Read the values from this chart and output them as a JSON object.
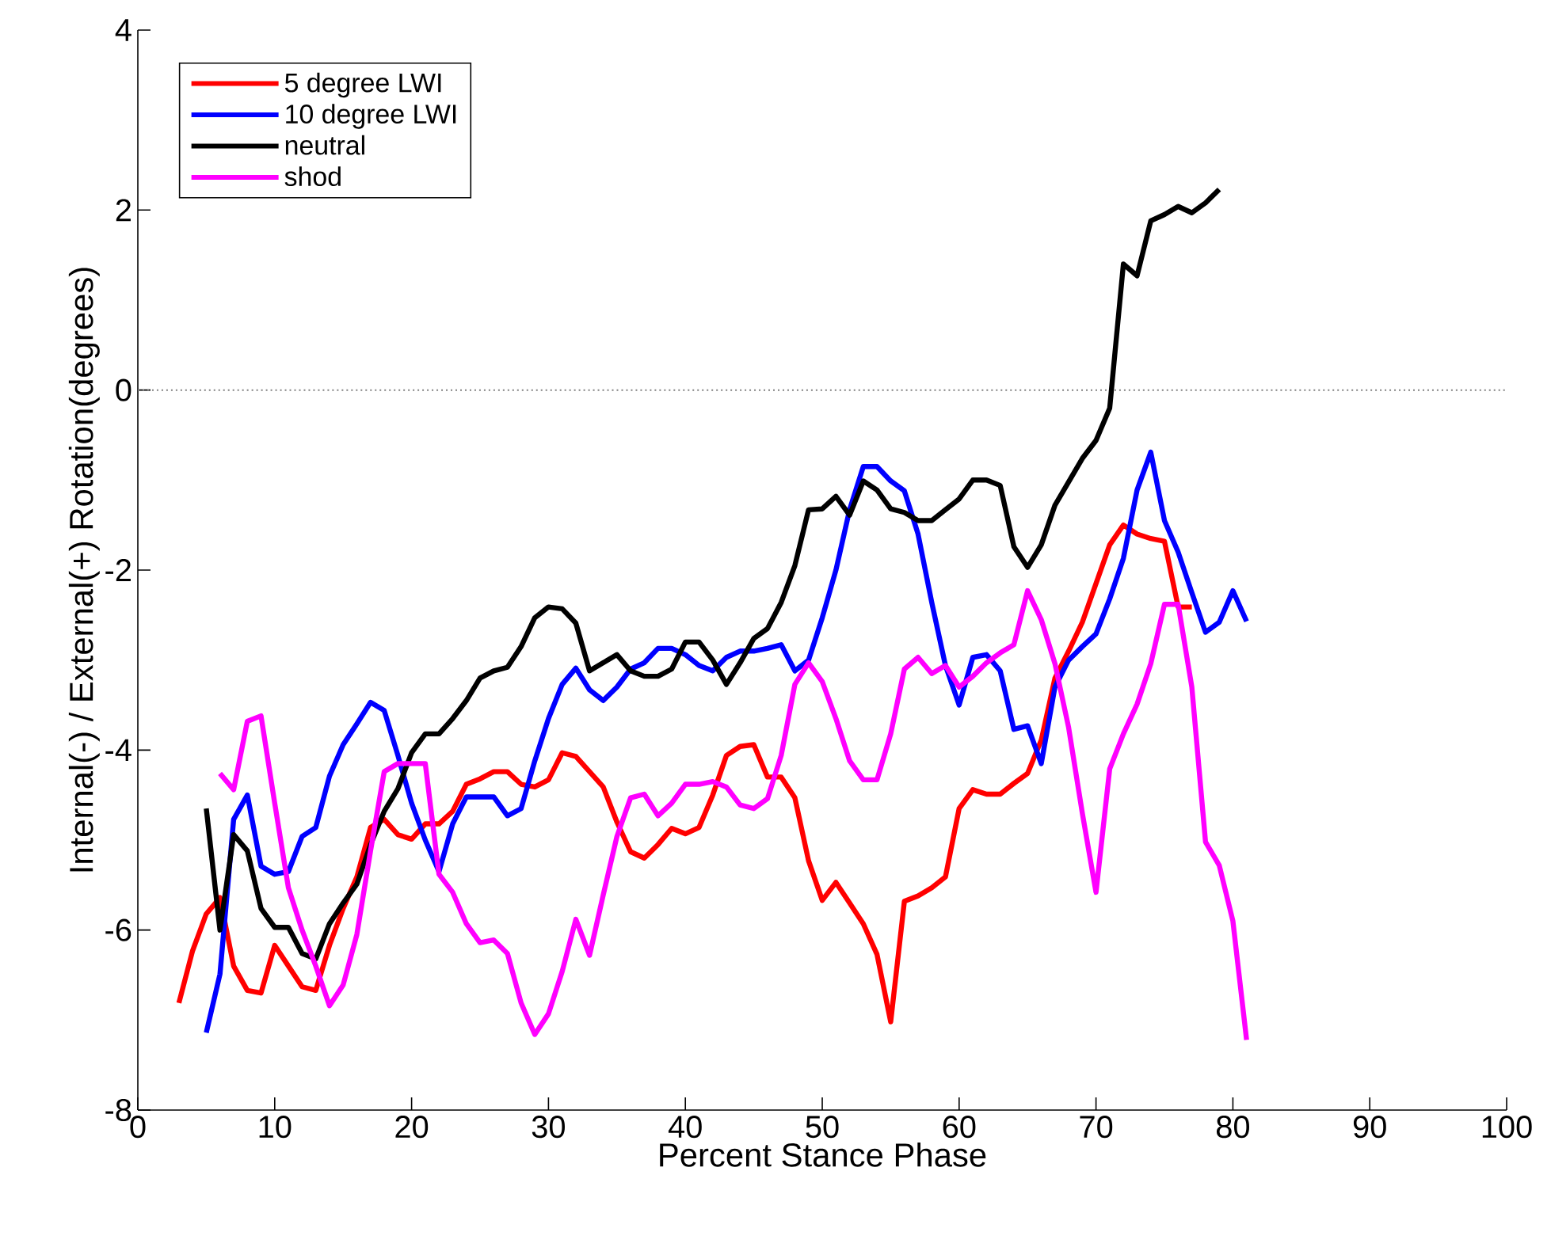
{
  "chart_data": {
    "type": "line",
    "xlabel": "Percent Stance Phase",
    "ylabel": "Internal(-) / External(+) Rotation(degrees)",
    "xlim": [
      0,
      100
    ],
    "ylim": [
      -8,
      4
    ],
    "xticks": [
      0,
      10,
      20,
      30,
      40,
      50,
      60,
      70,
      80,
      90,
      100
    ],
    "yticks": [
      -8,
      -6,
      -4,
      -2,
      0,
      2,
      4
    ],
    "legend": "top left",
    "line_style": "solid",
    "grid": false,
    "ref_lines": [
      {
        "axis": "y",
        "value": 0,
        "color": "#808080",
        "line_style": "dotted"
      }
    ],
    "series": [
      {
        "name": "5 degree LWI",
        "color": "#ff0000",
        "x": [
          3,
          4,
          5,
          6,
          7,
          8,
          9,
          10,
          11,
          12,
          13,
          14,
          15,
          16,
          17,
          18,
          19,
          20,
          21,
          22,
          23,
          24,
          25,
          26,
          27,
          28,
          29,
          30,
          31,
          32,
          33,
          34,
          35,
          36,
          37,
          38,
          39,
          40,
          41,
          42,
          43,
          44,
          45,
          46,
          47,
          48,
          49,
          50,
          51,
          52,
          53,
          54,
          55,
          56,
          57,
          58,
          59,
          60,
          61,
          62,
          63,
          64,
          65,
          66,
          67,
          68,
          69,
          70,
          71,
          72,
          73,
          74,
          75,
          76,
          77
        ],
        "values": [
          -6.81,
          -6.23,
          -5.82,
          -5.64,
          -6.4,
          -6.67,
          -6.7,
          -6.17,
          -6.4,
          -6.63,
          -6.67,
          -6.17,
          -5.76,
          -5.41,
          -4.86,
          -4.77,
          -4.94,
          -4.99,
          -4.82,
          -4.82,
          -4.68,
          -4.38,
          -4.32,
          -4.24,
          -4.24,
          -4.38,
          -4.41,
          -4.33,
          -4.03,
          -4.07,
          -4.24,
          -4.41,
          -4.8,
          -5.13,
          -5.2,
          -5.05,
          -4.87,
          -4.93,
          -4.86,
          -4.5,
          -4.06,
          -3.96,
          -3.94,
          -4.3,
          -4.3,
          -4.53,
          -5.23,
          -5.67,
          -5.47,
          -5.7,
          -5.93,
          -6.27,
          -7.02,
          -5.68,
          -5.62,
          -5.53,
          -5.41,
          -4.65,
          -4.44,
          -4.49,
          -4.49,
          -4.37,
          -4.26,
          -3.89,
          -3.2,
          -2.9,
          -2.58,
          -2.15,
          -1.72,
          -1.5,
          -1.6,
          -1.65,
          -1.68,
          -2.41,
          -2.41
        ]
      },
      {
        "name": "10 degree LWI",
        "color": "#0000ff",
        "x": [
          5,
          6,
          7,
          8,
          9,
          10,
          11,
          12,
          13,
          14,
          15,
          16,
          17,
          18,
          19,
          20,
          21,
          22,
          23,
          24,
          25,
          26,
          27,
          28,
          29,
          30,
          31,
          32,
          33,
          34,
          35,
          36,
          37,
          38,
          39,
          40,
          41,
          42,
          43,
          44,
          45,
          46,
          47,
          48,
          49,
          50,
          51,
          52,
          53,
          54,
          55,
          56,
          57,
          58,
          59,
          60,
          61,
          62,
          63,
          64,
          65,
          66,
          67,
          68,
          69,
          70,
          71,
          72,
          73,
          74,
          75,
          76,
          77,
          78,
          79,
          80,
          81
        ],
        "values": [
          -7.14,
          -6.49,
          -4.77,
          -4.5,
          -5.29,
          -5.38,
          -5.35,
          -4.96,
          -4.86,
          -4.29,
          -3.94,
          -3.71,
          -3.47,
          -3.56,
          -4.06,
          -4.59,
          -5.0,
          -5.35,
          -4.82,
          -4.52,
          -4.52,
          -4.52,
          -4.73,
          -4.65,
          -4.12,
          -3.65,
          -3.27,
          -3.09,
          -3.33,
          -3.45,
          -3.3,
          -3.1,
          -3.03,
          -2.87,
          -2.87,
          -2.94,
          -3.06,
          -3.12,
          -2.97,
          -2.9,
          -2.9,
          -2.87,
          -2.83,
          -3.12,
          -3.0,
          -2.53,
          -2.0,
          -1.33,
          -0.85,
          -0.85,
          -1.01,
          -1.12,
          -1.6,
          -2.36,
          -3.06,
          -3.5,
          -2.97,
          -2.94,
          -3.12,
          -3.77,
          -3.73,
          -4.15,
          -3.3,
          -3.0,
          -2.85,
          -2.71,
          -2.32,
          -1.87,
          -1.11,
          -0.69,
          -1.45,
          -1.8,
          -2.25,
          -2.69,
          -2.58,
          -2.23,
          -2.57
        ]
      },
      {
        "name": "neutral",
        "color": "#000000",
        "x": [
          5,
          6,
          7,
          8,
          9,
          10,
          11,
          12,
          13,
          14,
          15,
          16,
          17,
          18,
          19,
          20,
          21,
          22,
          23,
          24,
          25,
          26,
          27,
          28,
          29,
          30,
          31,
          32,
          33,
          34,
          35,
          36,
          37,
          38,
          39,
          40,
          41,
          42,
          43,
          44,
          45,
          46,
          47,
          48,
          49,
          50,
          51,
          52,
          53,
          54,
          55,
          56,
          57,
          58,
          59,
          60,
          61,
          62,
          63,
          64,
          65,
          66,
          67,
          68,
          69,
          70,
          71,
          72,
          73,
          74,
          75,
          76,
          77,
          78,
          79
        ],
        "values": [
          -4.65,
          -6.0,
          -4.94,
          -5.12,
          -5.76,
          -5.97,
          -5.97,
          -6.26,
          -6.32,
          -5.93,
          -5.7,
          -5.49,
          -5.05,
          -4.68,
          -4.43,
          -4.03,
          -3.82,
          -3.82,
          -3.65,
          -3.45,
          -3.2,
          -3.12,
          -3.08,
          -2.85,
          -2.53,
          -2.41,
          -2.43,
          -2.59,
          -3.12,
          -3.03,
          -2.94,
          -3.12,
          -3.18,
          -3.18,
          -3.1,
          -2.8,
          -2.8,
          -3.0,
          -3.27,
          -3.03,
          -2.76,
          -2.65,
          -2.36,
          -1.95,
          -1.33,
          -1.32,
          -1.18,
          -1.39,
          -1.01,
          -1.11,
          -1.32,
          -1.36,
          -1.45,
          -1.45,
          -1.33,
          -1.21,
          -1.0,
          -1.0,
          -1.06,
          -1.74,
          -1.97,
          -1.72,
          -1.28,
          -1.02,
          -0.76,
          -0.56,
          -0.2,
          1.4,
          1.27,
          1.88,
          1.95,
          2.04,
          1.97,
          2.08,
          2.23
        ]
      },
      {
        "name": "shod",
        "color": "#ff00ff",
        "x": [
          6,
          7,
          8,
          9,
          10,
          11,
          12,
          13,
          14,
          15,
          16,
          17,
          18,
          19,
          20,
          21,
          22,
          23,
          24,
          25,
          26,
          27,
          28,
          29,
          30,
          31,
          32,
          33,
          34,
          35,
          36,
          37,
          38,
          39,
          40,
          41,
          42,
          43,
          44,
          45,
          46,
          47,
          48,
          49,
          50,
          51,
          52,
          53,
          54,
          55,
          56,
          57,
          58,
          59,
          60,
          61,
          62,
          63,
          64,
          65,
          66,
          67,
          68,
          69,
          70,
          71,
          72,
          73,
          74,
          75,
          76,
          77,
          78,
          79,
          80,
          81
        ],
        "values": [
          -4.26,
          -4.44,
          -3.68,
          -3.62,
          -4.59,
          -5.53,
          -6.0,
          -6.4,
          -6.84,
          -6.61,
          -6.05,
          -5.12,
          -4.24,
          -4.15,
          -4.15,
          -4.15,
          -5.38,
          -5.58,
          -5.93,
          -6.14,
          -6.11,
          -6.26,
          -6.81,
          -7.16,
          -6.93,
          -6.46,
          -5.88,
          -6.28,
          -5.61,
          -4.96,
          -4.53,
          -4.49,
          -4.73,
          -4.59,
          -4.38,
          -4.38,
          -4.35,
          -4.41,
          -4.61,
          -4.65,
          -4.54,
          -4.06,
          -3.27,
          -3.03,
          -3.24,
          -3.65,
          -4.12,
          -4.33,
          -4.33,
          -3.82,
          -3.1,
          -2.97,
          -3.15,
          -3.06,
          -3.3,
          -3.18,
          -3.03,
          -2.92,
          -2.83,
          -2.23,
          -2.55,
          -3.04,
          -3.75,
          -4.7,
          -5.58,
          -4.21,
          -3.82,
          -3.49,
          -3.04,
          -2.38,
          -2.38,
          -3.3,
          -5.02,
          -5.28,
          -5.9,
          -7.22
        ]
      }
    ]
  }
}
